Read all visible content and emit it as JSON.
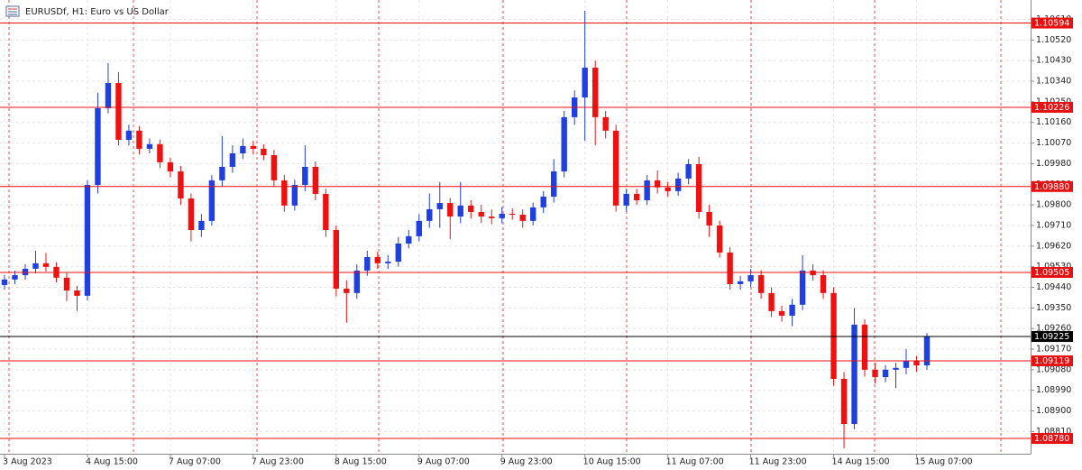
{
  "chart_data": {
    "type": "candlestick",
    "title": "EURUSDf, H1:  Euro vs US Dollar",
    "up_color": "#1f3fe0",
    "down_color": "#f01010",
    "grid": true,
    "xlim": [
      0,
      89
    ],
    "ylim": [
      1.08713,
      1.10675
    ],
    "xticks": [
      {
        "value": 0,
        "label": "3 Aug 2023"
      },
      {
        "value": 8,
        "label": "4 Aug 15:00"
      },
      {
        "value": 16,
        "label": "7 Aug 07:00"
      },
      {
        "value": 24,
        "label": "7 Aug 23:00"
      },
      {
        "value": 32,
        "label": "8 Aug 15:00"
      },
      {
        "value": 40,
        "label": "9 Aug 07:00"
      },
      {
        "value": 48,
        "label": "9 Aug 23:00"
      },
      {
        "value": 56,
        "label": "10 Aug 15:00"
      },
      {
        "value": 64,
        "label": "11 Aug 07:00"
      },
      {
        "value": 72,
        "label": "11 Aug 23:00"
      },
      {
        "value": 80,
        "label": "14 Aug 15:00"
      },
      {
        "value": 88,
        "label": "15 Aug 07:00"
      }
    ],
    "yticks": [
      {
        "value": 1.0881,
        "label": "1.08810"
      },
      {
        "value": 1.089,
        "label": "1.08900"
      },
      {
        "value": 1.0899,
        "label": "1.08990"
      },
      {
        "value": 1.0908,
        "label": "1.09080"
      },
      {
        "value": 1.0917,
        "label": "1.09170"
      },
      {
        "value": 1.0926,
        "label": "1.09260"
      },
      {
        "value": 1.0935,
        "label": "1.09350"
      },
      {
        "value": 1.0944,
        "label": "1.09440"
      },
      {
        "value": 1.0953,
        "label": "1.09530"
      },
      {
        "value": 1.0962,
        "label": "1.09620"
      },
      {
        "value": 1.0971,
        "label": "1.09710"
      },
      {
        "value": 1.098,
        "label": "1.09800"
      },
      {
        "value": 1.0989,
        "label": "1.09890"
      },
      {
        "value": 1.0998,
        "label": "1.09980"
      },
      {
        "value": 1.1007,
        "label": "1.10070"
      },
      {
        "value": 1.1016,
        "label": "1.10160"
      },
      {
        "value": 1.1025,
        "label": "1.10250"
      },
      {
        "value": 1.1034,
        "label": "1.10340"
      },
      {
        "value": 1.1043,
        "label": "1.10430"
      },
      {
        "value": 1.1052,
        "label": "1.10520"
      },
      {
        "value": 1.1061,
        "label": "1.10610"
      }
    ],
    "price_lines": [
      {
        "value": 1.10594,
        "label": "1.10594",
        "color": "#e81010"
      },
      {
        "value": 1.10226,
        "label": "1.10226",
        "color": "#e81010"
      },
      {
        "value": 1.0988,
        "label": "1.09880",
        "color": "#e81010"
      },
      {
        "value": 1.09505,
        "label": "1.09505",
        "color": "#e81010"
      },
      {
        "value": 1.09225,
        "label": "1.09225",
        "color": "#000000"
      },
      {
        "value": 1.09119,
        "label": "1.09119",
        "color": "#e81010"
      },
      {
        "value": 1.0878,
        "label": "1.08780",
        "color": "#e81010"
      }
    ],
    "open": [
      1.0945,
      1.09474,
      1.09493,
      1.09521,
      1.09545,
      1.09529,
      1.09482,
      1.09426,
      1.09403,
      1.09887,
      1.10222,
      1.10332,
      1.10084,
      1.10124,
      1.10045,
      1.10065,
      1.09986,
      1.09946,
      1.09828,
      1.0969,
      1.0973,
      1.09907,
      1.09966,
      1.10025,
      1.10057,
      1.10045,
      1.10017,
      1.09907,
      1.09797,
      1.09887,
      1.09966,
      1.09848,
      1.0969,
      1.09434,
      1.09415,
      1.09513,
      1.09572,
      1.09545,
      1.09552,
      1.09631,
      1.09663,
      1.0973,
      1.09781,
      1.09808,
      1.09749,
      1.09797,
      1.09769,
      1.09749,
      1.09742,
      1.09761,
      1.09757,
      1.0973,
      1.09789,
      1.09836,
      1.09946,
      1.10183,
      1.10269,
      1.10399,
      1.10183,
      1.10124,
      1.09797,
      1.09848,
      1.0982,
      1.09907,
      1.09876,
      1.0986,
      1.09915,
      1.09978,
      1.09769,
      1.0971,
      1.09592,
      1.09454,
      1.09466,
      1.09493,
      1.09415,
      1.09336,
      1.09316,
      1.09364,
      1.09513,
      1.09493,
      1.09415,
      1.0904,
      1.08843,
      1.09277,
      1.0908,
      1.09048,
      1.0908,
      1.09088,
      1.09119,
      1.09099
    ],
    "high": [
      1.09494,
      1.09513,
      1.09541,
      1.096,
      1.0959,
      1.09549,
      1.09502,
      1.09446,
      1.09907,
      1.1029,
      1.10419,
      1.1038,
      1.1015,
      1.10144,
      1.1009,
      1.10085,
      1.10006,
      1.0997,
      1.0985,
      1.0976,
      1.0993,
      1.101,
      1.1006,
      1.1009,
      1.1008,
      1.10065,
      1.1004,
      1.0993,
      1.0991,
      1.1006,
      1.0999,
      1.0987,
      1.0971,
      1.0947,
      1.0954,
      1.096,
      1.09595,
      1.0958,
      1.0966,
      1.0969,
      1.0976,
      1.0985,
      1.099,
      1.0983,
      1.099,
      1.0982,
      1.098,
      1.0978,
      1.0979,
      1.09785,
      1.0978,
      1.0981,
      1.0986,
      1.1,
      1.1021,
      1.103,
      1.10648,
      1.1043,
      1.1021,
      1.1015,
      1.0987,
      1.0987,
      1.0993,
      1.0995,
      1.099,
      1.0994,
      1.1,
      1.1001,
      1.098,
      1.0973,
      1.09615,
      1.0949,
      1.0952,
      1.09515,
      1.0944,
      1.0936,
      1.0939,
      1.0958,
      1.0954,
      1.09515,
      1.0944,
      1.0907,
      1.0935,
      1.093,
      1.0911,
      1.091,
      1.0911,
      1.0917,
      1.0914,
      1.0924
    ],
    "low": [
      1.0943,
      1.09454,
      1.09473,
      1.09501,
      1.09509,
      1.09462,
      1.0938,
      1.09336,
      1.09383,
      1.0985,
      1.102,
      1.1006,
      1.1006,
      1.1002,
      1.10025,
      1.0996,
      1.0992,
      1.098,
      1.0964,
      1.0966,
      1.0971,
      1.0988,
      1.0994,
      1.1,
      1.1002,
      1.09995,
      1.0988,
      1.0977,
      1.09775,
      1.0986,
      1.0982,
      1.0966,
      1.094,
      1.09285,
      1.0939,
      1.0949,
      1.0952,
      1.0952,
      1.0953,
      1.0961,
      1.0964,
      1.097,
      1.097,
      1.0965,
      1.0972,
      1.0974,
      1.0972,
      1.09715,
      1.0972,
      1.09735,
      1.097,
      1.0971,
      1.09765,
      1.0981,
      1.0992,
      1.1015,
      1.1008,
      1.1006,
      1.1009,
      1.0977,
      1.0977,
      1.098,
      1.098,
      1.0985,
      1.09835,
      1.0984,
      1.0989,
      1.0974,
      1.0966,
      1.0957,
      1.0943,
      1.0943,
      1.0944,
      1.0939,
      1.0931,
      1.0929,
      1.0927,
      1.0934,
      1.0947,
      1.0939,
      1.0901,
      1.08737,
      1.0882,
      1.0905,
      1.0902,
      1.09025,
      1.09,
      1.0906,
      1.0907,
      1.0908
    ],
    "close": [
      1.09474,
      1.09493,
      1.09521,
      1.09545,
      1.09529,
      1.09482,
      1.09426,
      1.09403,
      1.09887,
      1.10222,
      1.10332,
      1.10084,
      1.10124,
      1.10045,
      1.10065,
      1.09986,
      1.09946,
      1.09828,
      1.0969,
      1.0973,
      1.09907,
      1.09966,
      1.10025,
      1.10057,
      1.10045,
      1.10017,
      1.09907,
      1.09797,
      1.09887,
      1.09966,
      1.09848,
      1.0969,
      1.09434,
      1.09415,
      1.09513,
      1.09572,
      1.09545,
      1.09552,
      1.09631,
      1.09663,
      1.0973,
      1.09781,
      1.09808,
      1.09749,
      1.09797,
      1.09769,
      1.09749,
      1.09742,
      1.09761,
      1.09757,
      1.0973,
      1.09789,
      1.09836,
      1.09946,
      1.10183,
      1.10269,
      1.10399,
      1.10183,
      1.10124,
      1.09797,
      1.09848,
      1.0982,
      1.09907,
      1.09876,
      1.0986,
      1.09915,
      1.09978,
      1.09769,
      1.0971,
      1.09592,
      1.09454,
      1.09466,
      1.09493,
      1.09415,
      1.09336,
      1.09316,
      1.09364,
      1.09513,
      1.09493,
      1.09415,
      1.0904,
      1.08843,
      1.09277,
      1.0908,
      1.09048,
      1.0908,
      1.09088,
      1.09119,
      1.09099,
      1.09225
    ]
  }
}
